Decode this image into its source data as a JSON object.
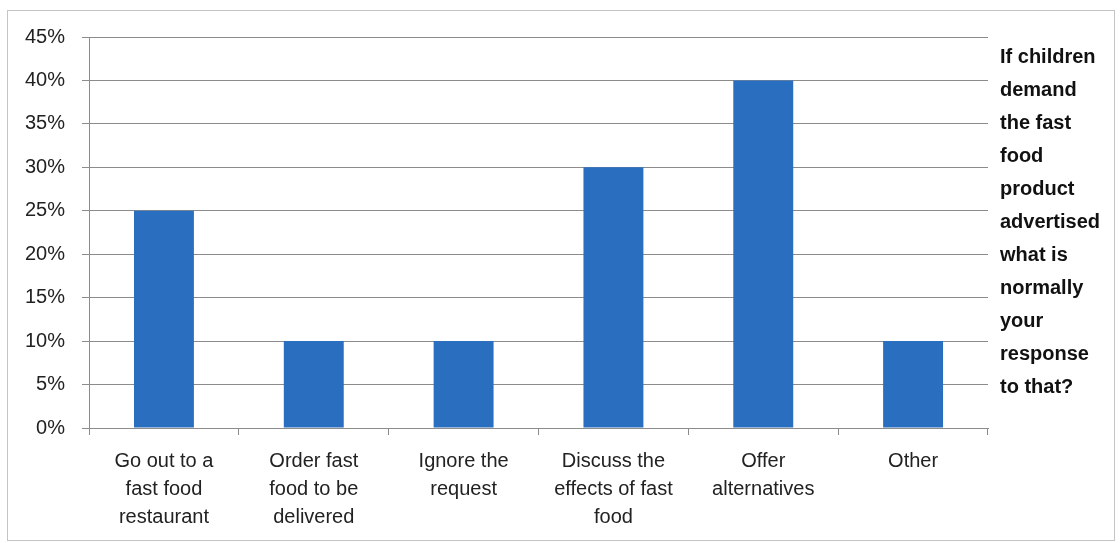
{
  "chart_data": {
    "type": "bar",
    "title": "If children demand the fast food product advertised what is normally your response to that?",
    "categories": [
      "Go out to a fast food restaurant",
      "Order fast food to be delivered",
      "Ignore the request",
      "Discuss the effects of fast food",
      "Offer alternatives",
      "Other"
    ],
    "values": [
      25,
      10,
      10,
      30,
      40,
      10
    ],
    "color": "#2a6ebf",
    "ylim": [
      0,
      45
    ],
    "yticks": [
      {
        "value": 0,
        "label": "0%"
      },
      {
        "value": 5,
        "label": "5%"
      },
      {
        "value": 10,
        "label": "10%"
      },
      {
        "value": 15,
        "label": "15%"
      },
      {
        "value": 20,
        "label": "20%"
      },
      {
        "value": 25,
        "label": "25%"
      },
      {
        "value": 30,
        "label": "30%"
      },
      {
        "value": 35,
        "label": "35%"
      },
      {
        "value": 40,
        "label": "40%"
      },
      {
        "value": 45,
        "label": "45%"
      }
    ],
    "grid": "y"
  }
}
